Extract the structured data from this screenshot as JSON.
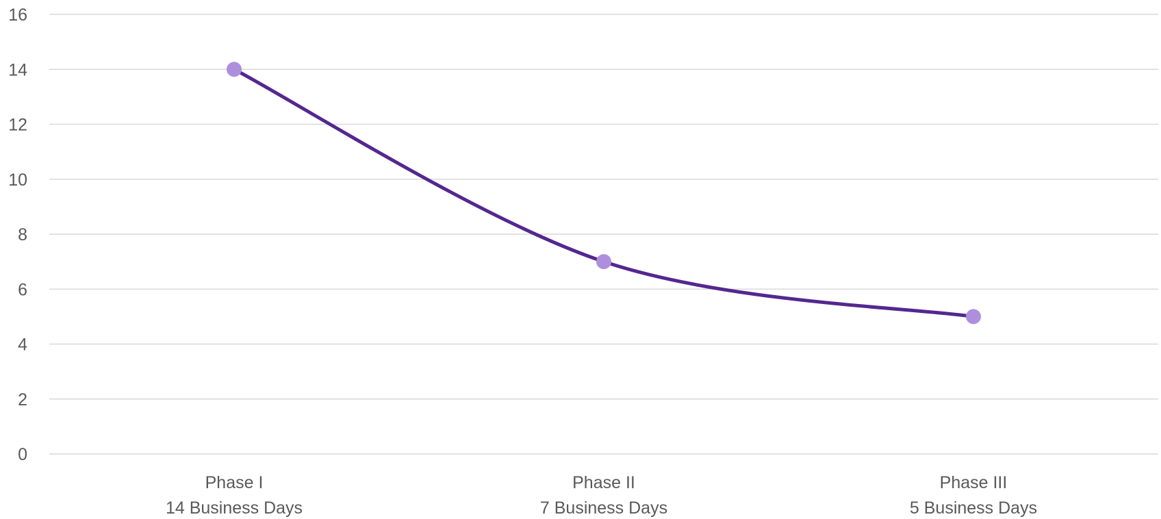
{
  "chart_data": {
    "type": "line",
    "smooth": true,
    "categories": [
      [
        "Phase I",
        "14 Business Days"
      ],
      [
        "Phase II",
        "7 Business Days"
      ],
      [
        "Phase III",
        "5 Business Days"
      ]
    ],
    "series": [
      {
        "values": [
          14,
          7,
          5
        ],
        "line_color": "#54278f",
        "marker_color": "#ae8fdd"
      }
    ],
    "ylim": [
      0,
      16
    ],
    "yticks": [
      0,
      2,
      4,
      6,
      8,
      10,
      12,
      14,
      16
    ],
    "grid": true,
    "legend": "none",
    "colors": {
      "gridline": "#d9d9d9",
      "text": "#595959"
    }
  }
}
